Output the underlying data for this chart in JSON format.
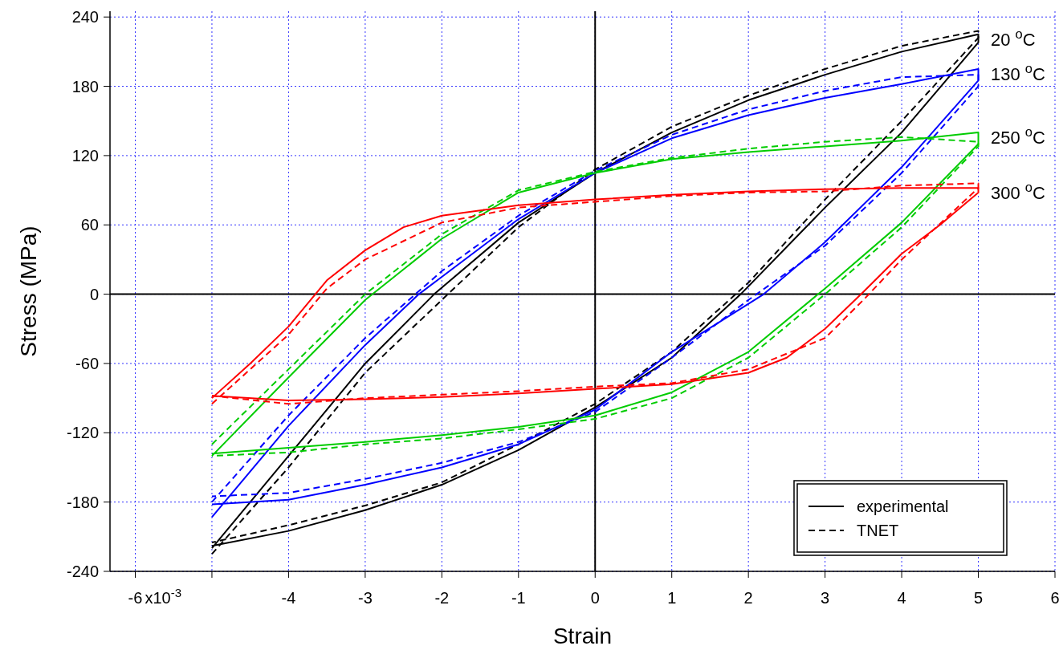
{
  "chart_data": {
    "type": "line",
    "xlabel": "Strain",
    "ylabel": "Stress (MPa)",
    "xlim": [
      -6.33,
      6
    ],
    "ylim": [
      -240,
      245
    ],
    "xticks": [
      -6,
      {
        "value": -5,
        "label": null
      },
      -4,
      -3,
      -2,
      -1,
      0,
      1,
      2,
      3,
      4,
      5,
      6
    ],
    "yticks": [
      -240,
      -180,
      -120,
      -60,
      0,
      60,
      120,
      180,
      240
    ],
    "grid": true,
    "annotations": [
      "experimental",
      "TNET",
      "x10$^{-3}$"
    ],
    "series": [
      {
        "name": "20 $^{o}$C",
        "color": "#000000",
        "line_style": "solid",
        "x": [
          -5,
          -4,
          -3,
          -2.1,
          -1,
          0,
          1,
          2,
          3,
          4,
          5,
          5,
          4,
          3,
          1.9,
          1,
          0,
          -1,
          -2,
          -3,
          -4,
          -5
        ],
        "values": [
          -220,
          -140,
          -60,
          0,
          62,
          105,
          140,
          168,
          190,
          210,
          225,
          218,
          140,
          75,
          0,
          -55,
          -98,
          -135,
          -165,
          -187,
          -205,
          -218
        ]
      },
      {
        "color": "#000000",
        "line_style": "dashed",
        "x": [
          -5,
          -4,
          -3,
          -2,
          -1,
          0,
          1,
          2,
          3,
          4,
          5,
          5,
          4,
          3,
          2,
          1,
          0,
          -1,
          -2,
          -3,
          -4,
          -5
        ],
        "values": [
          -225,
          -150,
          -68,
          -5,
          58,
          108,
          145,
          172,
          195,
          215,
          228,
          222,
          150,
          82,
          10,
          -50,
          -95,
          -130,
          -163,
          -183,
          -200,
          -215
        ]
      },
      {
        "name": "130 $^{o}$C",
        "color": "#0000ff",
        "line_style": "solid",
        "x": [
          -5,
          -4,
          -3,
          -2.3,
          -2,
          -1,
          0,
          1,
          2,
          3,
          4,
          5,
          5,
          4,
          3,
          2.2,
          1,
          0,
          -1,
          -2,
          -3,
          -4,
          -5
        ],
        "values": [
          -193,
          -114,
          -44,
          0,
          15,
          65,
          105,
          135,
          155,
          170,
          182,
          195,
          185,
          110,
          45,
          0,
          -50,
          -100,
          -130,
          -150,
          -165,
          -178,
          -182
        ]
      },
      {
        "color": "#0000ff",
        "line_style": "dashed",
        "x": [
          -5,
          -4,
          -3,
          -2,
          -1,
          0,
          1,
          2,
          3,
          4,
          5,
          5,
          4,
          3,
          2,
          1,
          0,
          -1,
          -2,
          -3,
          -4,
          -5
        ],
        "values": [
          -180,
          -105,
          -38,
          20,
          68,
          107,
          138,
          160,
          176,
          188,
          190,
          180,
          105,
          42,
          -5,
          -55,
          -102,
          -128,
          -146,
          -160,
          -172,
          -175
        ]
      },
      {
        "name": "250 $^{o}$C",
        "color": "#00cc00",
        "line_style": "solid",
        "x": [
          -5,
          -4,
          -3,
          -2,
          -1,
          0,
          1,
          2,
          3,
          4,
          5,
          5,
          4,
          3,
          2,
          1,
          0,
          -1,
          -2,
          -3,
          -4,
          -5
        ],
        "values": [
          -140,
          -72,
          -5,
          48,
          88,
          105,
          117,
          123,
          128,
          133,
          140,
          130,
          62,
          5,
          -50,
          -85,
          -105,
          -115,
          -122,
          -128,
          -133,
          -138
        ]
      },
      {
        "color": "#00cc00",
        "line_style": "dashed",
        "x": [
          -5,
          -4,
          -3,
          -2,
          -1,
          0,
          1,
          2,
          3,
          4,
          5,
          5,
          4,
          3,
          2,
          1,
          0,
          -1,
          -2,
          -3,
          -4,
          -5
        ],
        "values": [
          -130,
          -65,
          0,
          52,
          90,
          106,
          118,
          126,
          132,
          136,
          132,
          128,
          58,
          0,
          -55,
          -90,
          -108,
          -117,
          -125,
          -130,
          -137,
          -140
        ]
      },
      {
        "name": "300 $^{o}$C",
        "color": "#ff0000",
        "line_style": "solid",
        "x": [
          -5,
          -4.5,
          -4,
          -3.5,
          -3,
          -2.5,
          -2,
          -1,
          0,
          1,
          2,
          3,
          4,
          5,
          5,
          4.5,
          4,
          3.5,
          3,
          2.5,
          2,
          1,
          0,
          -1,
          -2,
          -3,
          -4,
          -5
        ],
        "values": [
          -90,
          -60,
          -28,
          12,
          38,
          58,
          68,
          77,
          82,
          86,
          89,
          91,
          92,
          92,
          88,
          60,
          35,
          2,
          -30,
          -55,
          -68,
          -78,
          -82,
          -86,
          -89,
          -91,
          -92,
          -88
        ]
      },
      {
        "color": "#ff0000",
        "line_style": "dashed",
        "x": [
          -5,
          -4,
          -3.5,
          -3,
          -2,
          -1,
          0,
          1,
          2,
          3,
          4,
          5,
          5,
          4,
          3.5,
          3,
          2,
          1,
          0,
          -1,
          -2,
          -3,
          -4,
          -5
        ],
        "values": [
          -95,
          -35,
          5,
          30,
          62,
          75,
          80,
          85,
          88,
          89,
          94,
          96,
          92,
          30,
          -5,
          -38,
          -65,
          -77,
          -80,
          -84,
          -87,
          -90,
          -95,
          -88
        ]
      }
    ]
  }
}
